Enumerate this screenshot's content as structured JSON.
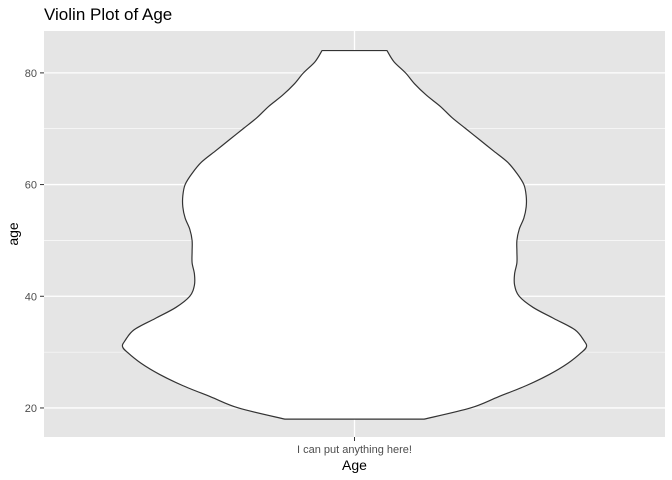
{
  "chart_data": {
    "type": "violin",
    "title": "Violin Plot of Age",
    "xlabel": "Age",
    "ylabel": "age",
    "categories": [
      "I can put anything here!"
    ],
    "ylim": [
      14.8,
      87.5
    ],
    "yticks": [
      20,
      40,
      60,
      80
    ],
    "grid": true,
    "colors": {
      "panel": "#e5e5e5",
      "grid": "#ffffff",
      "violin_fill": "#ffffff",
      "violin_outline": "#333333"
    },
    "violins": [
      {
        "category": "I can put anything here!",
        "y_min": 18,
        "y_max": 84,
        "profile": [
          {
            "y": 18,
            "w": 0.3
          },
          {
            "y": 20,
            "w": 0.5
          },
          {
            "y": 22,
            "w": 0.62
          },
          {
            "y": 24,
            "w": 0.74
          },
          {
            "y": 26,
            "w": 0.84
          },
          {
            "y": 28,
            "w": 0.92
          },
          {
            "y": 30,
            "w": 0.98
          },
          {
            "y": 31,
            "w": 1.0
          },
          {
            "y": 32,
            "w": 0.99
          },
          {
            "y": 34,
            "w": 0.95
          },
          {
            "y": 36,
            "w": 0.86
          },
          {
            "y": 38,
            "w": 0.77
          },
          {
            "y": 40,
            "w": 0.71
          },
          {
            "y": 42,
            "w": 0.69
          },
          {
            "y": 44,
            "w": 0.69
          },
          {
            "y": 46,
            "w": 0.7
          },
          {
            "y": 48,
            "w": 0.7
          },
          {
            "y": 50,
            "w": 0.7
          },
          {
            "y": 52,
            "w": 0.71
          },
          {
            "y": 54,
            "w": 0.73
          },
          {
            "y": 56,
            "w": 0.74
          },
          {
            "y": 58,
            "w": 0.74
          },
          {
            "y": 60,
            "w": 0.73
          },
          {
            "y": 62,
            "w": 0.7
          },
          {
            "y": 64,
            "w": 0.66
          },
          {
            "y": 66,
            "w": 0.6
          },
          {
            "y": 68,
            "w": 0.54
          },
          {
            "y": 70,
            "w": 0.48
          },
          {
            "y": 72,
            "w": 0.42
          },
          {
            "y": 74,
            "w": 0.37
          },
          {
            "y": 76,
            "w": 0.31
          },
          {
            "y": 78,
            "w": 0.26
          },
          {
            "y": 80,
            "w": 0.22
          },
          {
            "y": 82,
            "w": 0.17
          },
          {
            "y": 84,
            "w": 0.14
          }
        ]
      }
    ]
  }
}
